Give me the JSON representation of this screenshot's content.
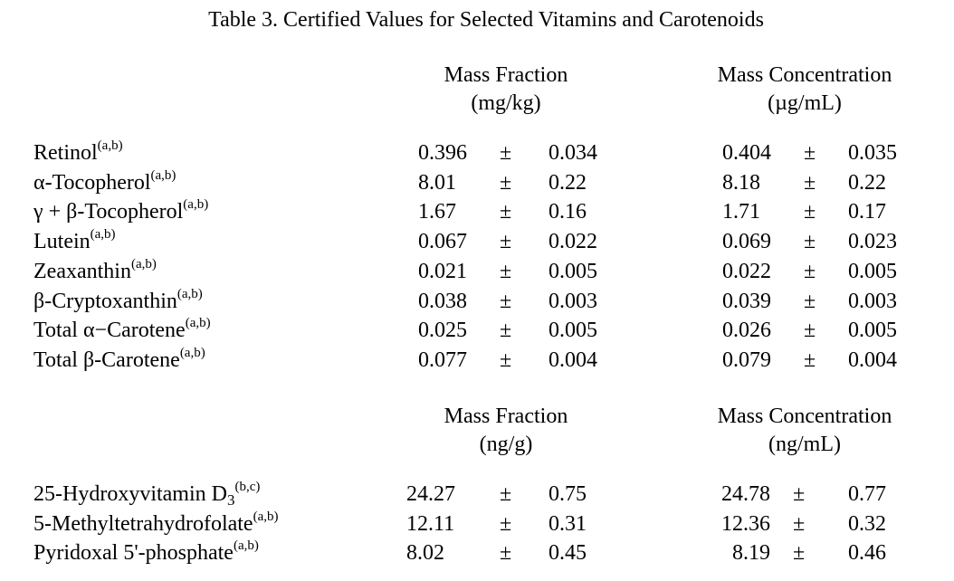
{
  "title": "Table 3.  Certified Values for Selected Vitamins and Carotenoids",
  "pm": "±",
  "section1": {
    "header_left": {
      "line1": "Mass Fraction",
      "line2": "(mg/kg)"
    },
    "header_right": {
      "line1": "Mass Concentration",
      "line2": "(µg/mL)"
    },
    "rows": [
      {
        "name": "Retinol",
        "sup": "(a,b)",
        "mf": "0.396",
        "mf_unc": "0.034",
        "mc": "0.404",
        "mc_unc": "0.035"
      },
      {
        "name": "α-Tocopherol",
        "sup": "(a,b)",
        "mf": "8.01",
        "mf_unc": "0.22",
        "mc": "8.18",
        "mc_unc": "0.22"
      },
      {
        "name": "γ + β-Tocopherol",
        "sup": "(a,b)",
        "mf": "1.67",
        "mf_unc": "0.16",
        "mc": "1.71",
        "mc_unc": "0.17"
      },
      {
        "name": "Lutein",
        "sup": "(a,b)",
        "mf": "0.067",
        "mf_unc": "0.022",
        "mc": "0.069",
        "mc_unc": "0.023"
      },
      {
        "name": "Zeaxanthin",
        "sup": "(a,b)",
        "mf": "0.021",
        "mf_unc": "0.005",
        "mc": "0.022",
        "mc_unc": "0.005"
      },
      {
        "name": "β-Cryptoxanthin",
        "sup": "(a,b)",
        "mf": "0.038",
        "mf_unc": "0.003",
        "mc": "0.039",
        "mc_unc": "0.003"
      },
      {
        "name": "Total α−Carotene",
        "sup": "(a,b)",
        "mf": "0.025",
        "mf_unc": "0.005",
        "mc": "0.026",
        "mc_unc": "0.005"
      },
      {
        "name": "Total β-Carotene",
        "sup": "(a,b)",
        "mf": "0.077",
        "mf_unc": "0.004",
        "mc": "0.079",
        "mc_unc": "0.004"
      }
    ]
  },
  "section2": {
    "header_left": {
      "line1": "Mass Fraction",
      "line2": "(ng/g)"
    },
    "header_right": {
      "line1": "Mass Concentration",
      "line2": "(ng/mL)"
    },
    "rows": [
      {
        "name": "25-Hydroxyvitamin D",
        "sub": "3",
        "sup": "(b,c)",
        "mf": "24.27",
        "mf_unc": "0.75",
        "mc": "24.78",
        "mc_unc": "0.77"
      },
      {
        "name": "5-Methyltetrahydrofolate",
        "sup": "(a,b)",
        "mf": "12.11",
        "mf_unc": "0.31",
        "mc": "12.36",
        "mc_unc": "0.32"
      },
      {
        "name": "Pyridoxal 5'-phosphate",
        "sup": "(a,b)",
        "mf": "8.02",
        "mf_unc": "0.45",
        "mc": "8.19",
        "mc_unc": "0.46"
      }
    ]
  }
}
